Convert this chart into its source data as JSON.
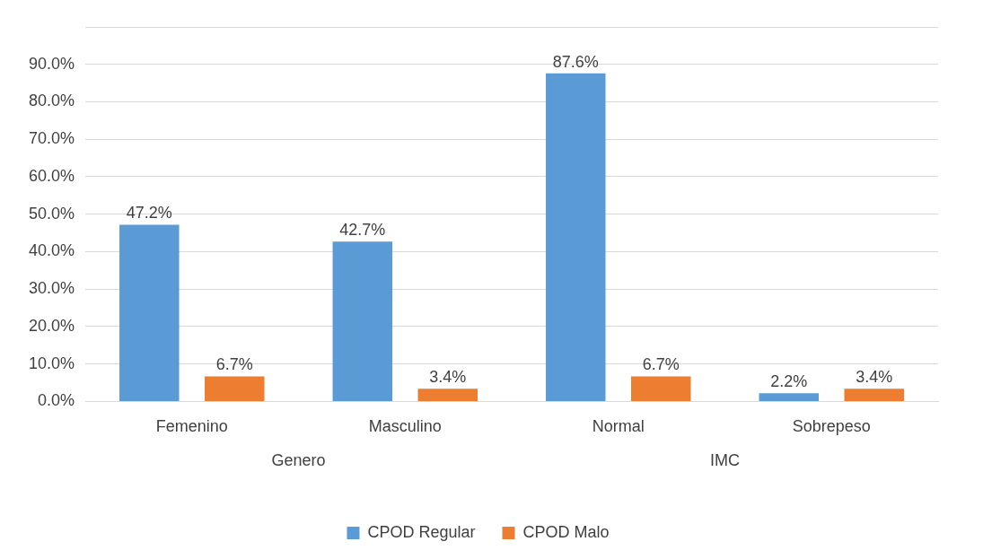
{
  "chart_data": {
    "type": "bar",
    "categories": [
      "Femenino",
      "Masculino",
      "Normal",
      "Sobrepeso"
    ],
    "series": [
      {
        "name": "CPOD Regular",
        "color": "#5b9bd5",
        "values": [
          47.2,
          42.7,
          87.6,
          2.2
        ],
        "value_labels": [
          "47.2%",
          "42.7%",
          "87.6%",
          "2.2%"
        ]
      },
      {
        "name": "CPOD Malo",
        "color": "#ed7d31",
        "values": [
          6.7,
          3.4,
          6.7,
          3.4
        ],
        "value_labels": [
          "6.7%",
          "3.4%",
          "6.7%",
          "3.4%"
        ]
      }
    ],
    "ylim": [
      0,
      100
    ],
    "yticks": [
      {
        "value": 0,
        "label": "0.0%"
      },
      {
        "value": 10,
        "label": "10.0%"
      },
      {
        "value": 20,
        "label": "20.0%"
      },
      {
        "value": 30,
        "label": "30.0%"
      },
      {
        "value": 40,
        "label": "40.0%"
      },
      {
        "value": 50,
        "label": "50.0%"
      },
      {
        "value": 60,
        "label": "60.0%"
      },
      {
        "value": 70,
        "label": "70.0%"
      },
      {
        "value": 80,
        "label": "80.0%"
      },
      {
        "value": 90,
        "label": "90.0%"
      },
      {
        "value": 100,
        "label": null
      }
    ],
    "annotations": [
      "Genero",
      "IMC"
    ],
    "grid": "y",
    "legend": "bottom"
  }
}
